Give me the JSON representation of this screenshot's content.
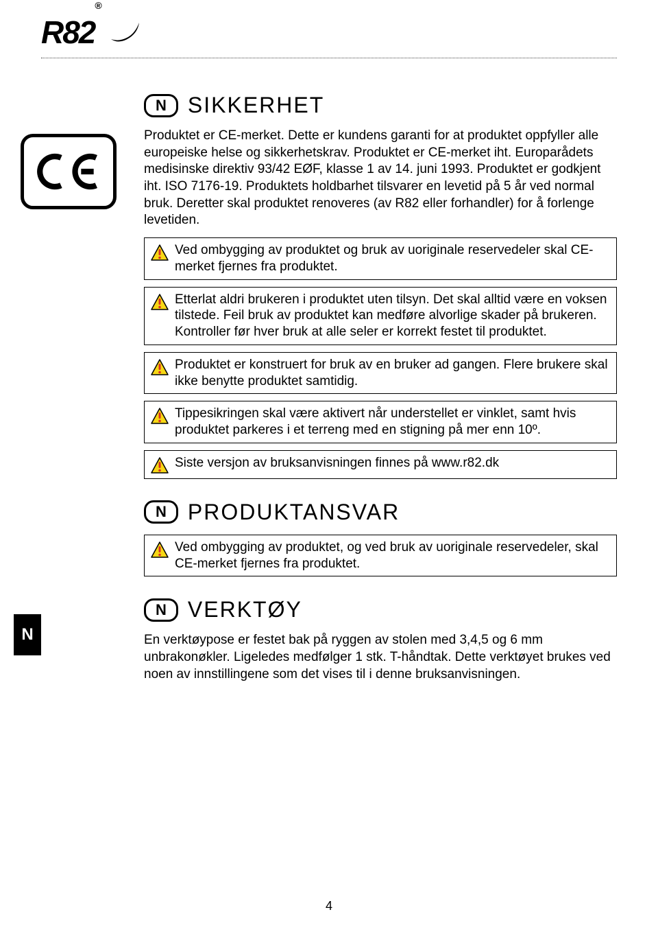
{
  "logo": {
    "brand": "R82",
    "registered": "®"
  },
  "side_tab": "N",
  "ce_mark": "C E",
  "sections": {
    "sikkerhet": {
      "badge": "N",
      "title": "SIKKERHET",
      "body": "Produktet er CE-merket. Dette er kundens garanti for at produktet oppfyller alle europeiske helse og sikkerhetskrav. Produktet er CE-merket iht. Europarådets medisinske direktiv 93/42 EØF, klasse 1 av 14. juni 1993. Produktet er godkjent iht. ISO 7176-19. Produktets holdbarhet tilsvarer en levetid på 5 år ved normal bruk. Deretter skal produktet renoveres (av R82 eller forhandler) for å forlenge levetiden.",
      "warnings": [
        "Ved ombygging av produktet og bruk av uoriginale reservedeler skal CE-merket fjernes fra produktet.",
        "Etterlat aldri brukeren i produktet uten tilsyn. Det skal alltid være en voksen tilstede. Feil bruk av produktet kan medføre alvorlige skader på brukeren. Kontroller før hver bruk at alle seler er korrekt festet til produktet.",
        "Produktet er konstruert for bruk av en bruker ad gangen. Flere brukere skal ikke benytte produktet samtidig.",
        "Tippesikringen skal være aktivert når understellet er vinklet, samt hvis produktet parkeres i et terreng med en stigning på mer enn 10º.",
        "Siste versjon av bruksanvisningen finnes på www.r82.dk"
      ]
    },
    "produktansvar": {
      "badge": "N",
      "title": "PRODUKTANSVAR",
      "warnings": [
        "Ved ombygging av produktet, og ved bruk av uoriginale reservedeler, skal CE-merket fjernes fra produktet."
      ]
    },
    "verktoy": {
      "badge": "N",
      "title": "VERKTØY",
      "body": "En verktøypose er festet bak på ryggen av stolen med 3,4,5 og 6 mm unbrakonøkler. Ligeledes medfølger 1 stk. T-håndtak. Dette verktøyet brukes ved noen av innstillingene som det vises til i denne bruksanvisningen."
    }
  },
  "page_number": "4",
  "colors": {
    "warning_triangle_fill": "#f7d715",
    "warning_triangle_stroke": "#000000",
    "warning_exclaim": "#d93025"
  }
}
